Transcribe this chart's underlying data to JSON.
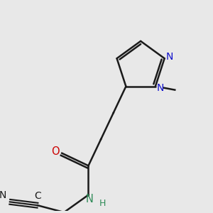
{
  "bg_color": "#e8e8e8",
  "bond_color": "#1a1a1a",
  "lw": 1.8,
  "figsize": [
    3.0,
    3.0
  ],
  "dpi": 100,
  "xlim": [
    0,
    300
  ],
  "ylim": [
    0,
    300
  ]
}
